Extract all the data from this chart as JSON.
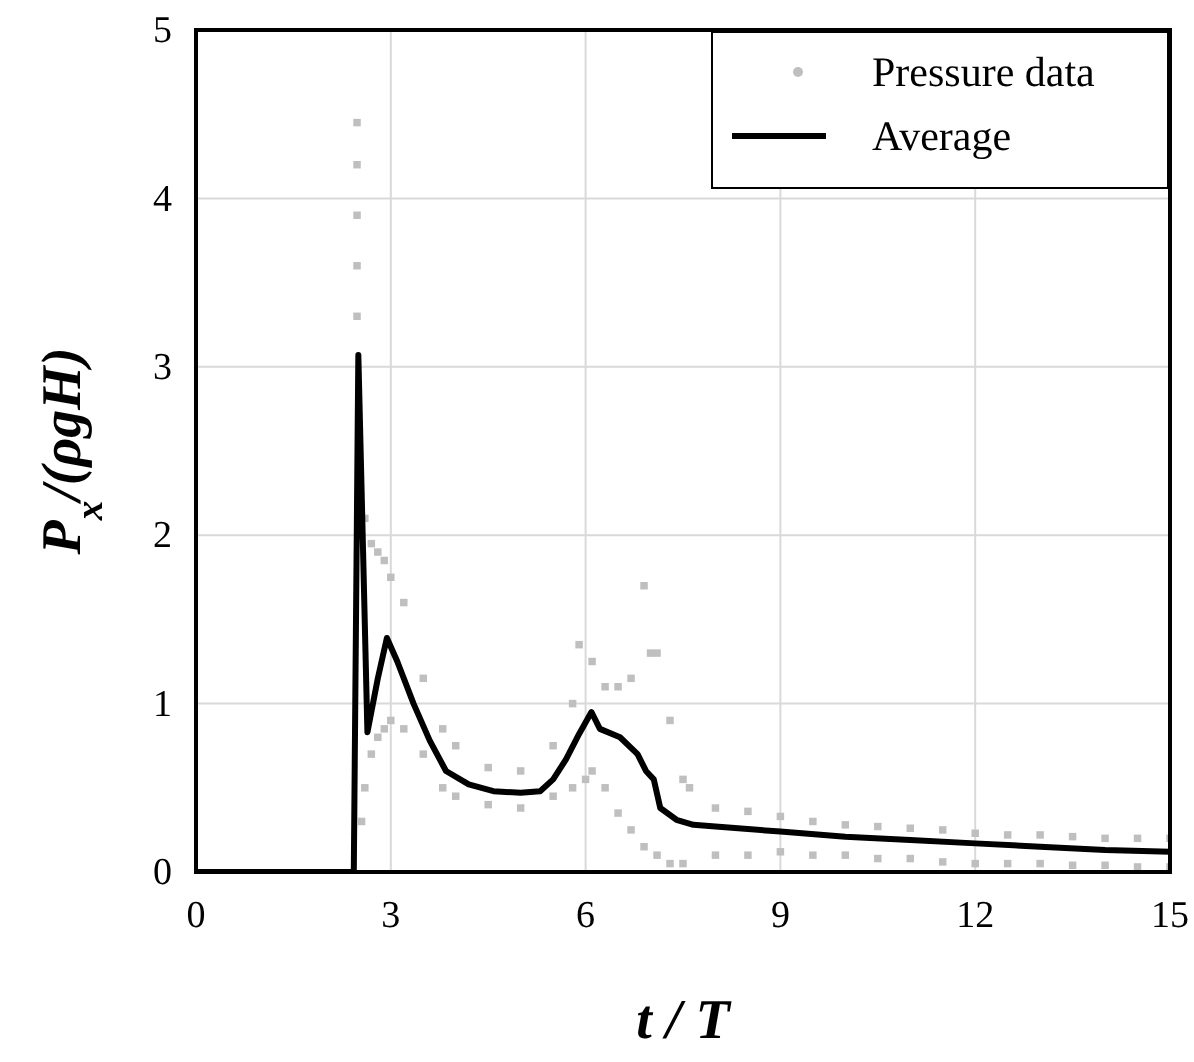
{
  "chart_data": {
    "type": "line",
    "xlabel": "t / T",
    "ylabel": "P$_{x}$/(ρgH)",
    "xlim": [
      0,
      15
    ],
    "ylim": [
      0,
      5
    ],
    "xticks": [
      0,
      3,
      6,
      9,
      12,
      15
    ],
    "yticks": [
      0,
      1,
      2,
      3,
      4,
      5
    ],
    "grid": true,
    "legend": "top right",
    "series": [
      {
        "name": "Pressure data",
        "type": "scatter",
        "marker": "square",
        "color": "#bfbfbf",
        "x": [
          2.48,
          2.48,
          2.48,
          2.48,
          2.48,
          2.55,
          2.6,
          2.6,
          2.7,
          2.7,
          2.8,
          2.8,
          2.9,
          2.9,
          3.0,
          3.0,
          3.2,
          3.2,
          3.5,
          3.5,
          3.8,
          3.8,
          4.0,
          4.0,
          4.5,
          4.5,
          5.0,
          5.0,
          5.5,
          5.5,
          5.8,
          5.8,
          5.9,
          6.0,
          6.1,
          6.1,
          6.3,
          6.3,
          6.5,
          6.5,
          6.7,
          6.7,
          6.9,
          6.9,
          7.0,
          7.1,
          7.1,
          7.3,
          7.3,
          7.5,
          7.5,
          7.6,
          8.0,
          8.0,
          8.5,
          8.5,
          9.0,
          9.0,
          9.5,
          9.5,
          10.0,
          10.0,
          10.5,
          10.5,
          11.0,
          11.0,
          11.5,
          11.5,
          12.0,
          12.0,
          12.5,
          12.5,
          13.0,
          13.0,
          13.5,
          13.5,
          14.0,
          14.0,
          14.5,
          14.5,
          15.0,
          15.0
        ],
        "values": [
          4.45,
          4.2,
          3.9,
          3.6,
          3.3,
          0.3,
          2.1,
          0.5,
          1.95,
          0.7,
          1.9,
          0.8,
          1.85,
          0.85,
          1.75,
          0.9,
          1.6,
          0.85,
          1.15,
          0.7,
          0.85,
          0.5,
          0.75,
          0.45,
          0.62,
          0.4,
          0.6,
          0.38,
          0.75,
          0.45,
          1.0,
          0.5,
          1.35,
          0.55,
          1.25,
          0.6,
          1.1,
          0.5,
          1.1,
          0.35,
          1.15,
          0.25,
          1.7,
          0.15,
          1.3,
          1.3,
          0.1,
          0.9,
          0.05,
          0.55,
          0.05,
          0.5,
          0.38,
          0.1,
          0.36,
          0.1,
          0.33,
          0.12,
          0.3,
          0.1,
          0.28,
          0.1,
          0.27,
          0.08,
          0.26,
          0.08,
          0.25,
          0.06,
          0.23,
          0.05,
          0.22,
          0.05,
          0.22,
          0.05,
          0.21,
          0.04,
          0.2,
          0.04,
          0.2,
          0.03,
          0.2,
          0.03
        ]
      },
      {
        "name": "Average",
        "marker": "none",
        "line_style": "solid",
        "color": "#000000",
        "x": [
          0,
          2.43,
          2.5,
          2.64,
          2.8,
          2.94,
          3.1,
          3.35,
          3.6,
          3.85,
          4.2,
          4.58,
          5.0,
          5.3,
          5.5,
          5.7,
          5.9,
          6.09,
          6.22,
          6.53,
          6.8,
          6.93,
          7.05,
          7.15,
          7.4,
          7.66,
          8.0,
          9.0,
          10.0,
          11.0,
          12.0,
          13.0,
          14.0,
          15.0
        ],
        "values": [
          0,
          0,
          3.07,
          0.83,
          1.15,
          1.39,
          1.25,
          1.0,
          0.78,
          0.6,
          0.52,
          0.48,
          0.47,
          0.48,
          0.55,
          0.67,
          0.82,
          0.95,
          0.85,
          0.8,
          0.7,
          0.6,
          0.55,
          0.38,
          0.31,
          0.28,
          0.27,
          0.24,
          0.21,
          0.19,
          0.17,
          0.15,
          0.13,
          0.12
        ]
      }
    ]
  }
}
